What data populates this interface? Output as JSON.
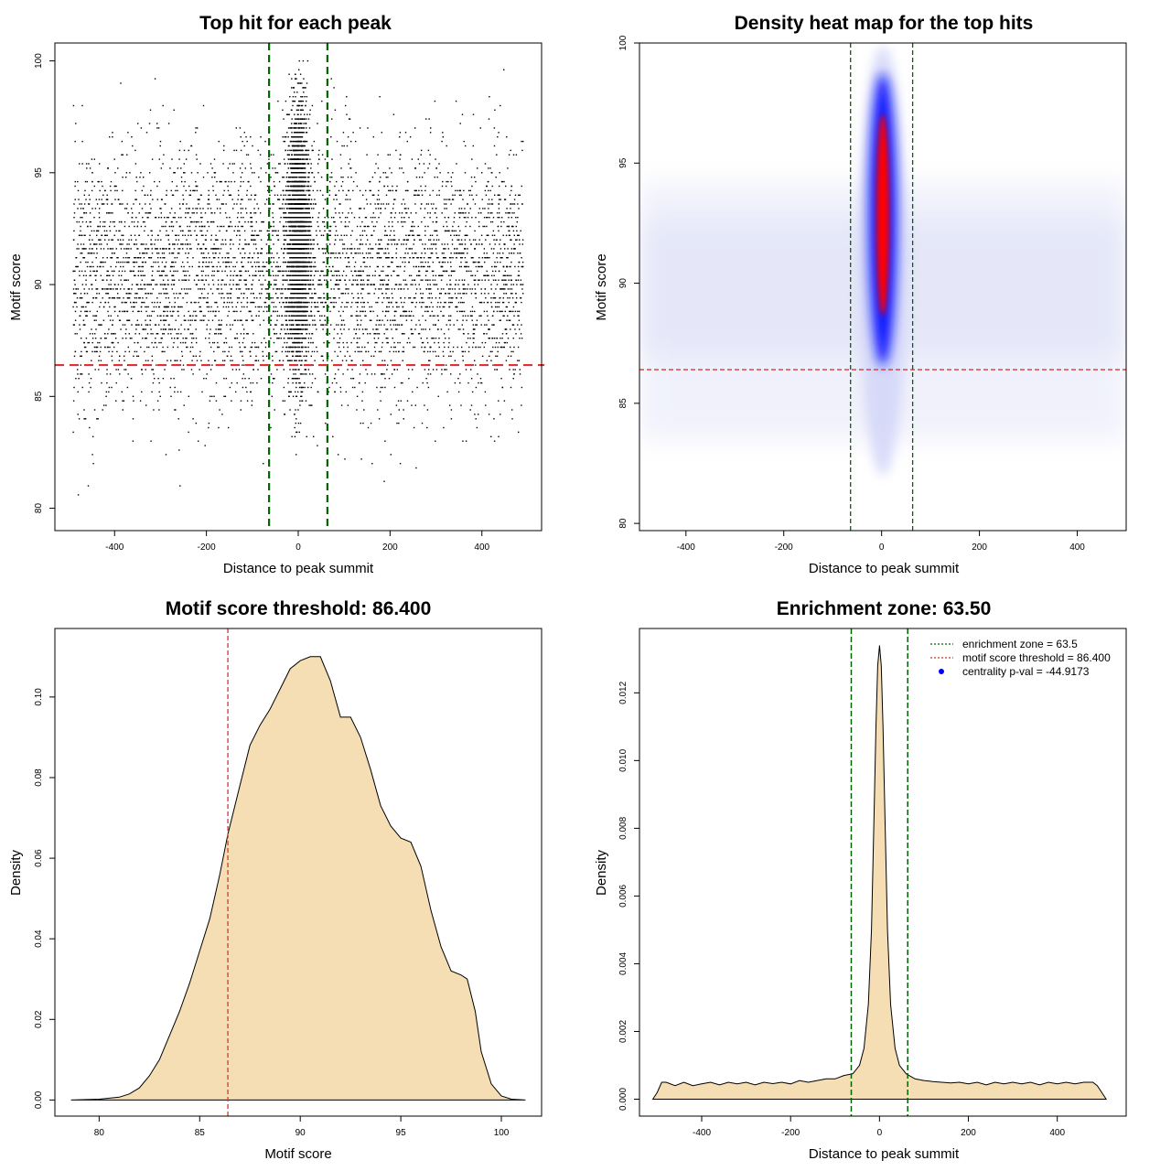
{
  "chart_data": [
    {
      "type": "scatter",
      "title": "Top hit for each peak",
      "xlabel": "Distance to peak summit",
      "ylabel": "Motif score",
      "xlim": [
        -530,
        530
      ],
      "ylim": [
        79,
        100.8
      ],
      "xticks": [
        -400,
        -200,
        0,
        200,
        400
      ],
      "yticks": [
        80,
        85,
        90,
        95,
        100
      ],
      "xtick_labels": [
        "-400",
        "-200",
        "0",
        "200",
        "400"
      ],
      "ytick_labels": [
        "80",
        "85",
        "90",
        "95",
        "100"
      ],
      "vlines": [
        -63.5,
        63.5
      ],
      "hline": 86.4,
      "vline_color": "#006400",
      "hline_color": "#dd3333",
      "point_color": "#000000"
    },
    {
      "type": "heatmap",
      "title": "Density heat map for the top hits",
      "xlabel": "Distance to peak summit",
      "ylabel": "Motif score",
      "xlim": [
        -495,
        500
      ],
      "ylim": [
        79.7,
        100
      ],
      "xticks": [
        -400,
        -200,
        0,
        200,
        400
      ],
      "yticks": [
        80,
        85,
        90,
        95,
        100
      ],
      "xtick_labels": [
        "-400",
        "-200",
        "0",
        "200",
        "400"
      ],
      "ytick_labels": [
        "80",
        "85",
        "90",
        "95",
        "100"
      ],
      "vlines": [
        -63.5,
        63.5
      ],
      "hline": 86.4,
      "vline_color": "#006400",
      "hline_color": "#dd3333",
      "colors": [
        "#ffffff",
        "#0000ff",
        "#ff0000"
      ]
    },
    {
      "type": "area",
      "title": "Motif score threshold: 86.400",
      "xlabel": "Motif score",
      "ylabel": "Density",
      "xlim": [
        77.8,
        102
      ],
      "ylim": [
        -0.004,
        0.117
      ],
      "xticks": [
        80,
        85,
        90,
        95,
        100
      ],
      "yticks": [
        0,
        0.02,
        0.04,
        0.06,
        0.08,
        0.1
      ],
      "xtick_labels": [
        "80",
        "85",
        "90",
        "95",
        "100"
      ],
      "ytick_labels": [
        "0.00",
        "0.02",
        "0.04",
        "0.06",
        "0.08",
        "0.10"
      ],
      "vline": 86.4,
      "vline_color": "#dd3333",
      "fill_color": "#f5deb3",
      "x": [
        78.6,
        80,
        81,
        81.5,
        82,
        82.5,
        83,
        83.5,
        84,
        84.5,
        85,
        85.5,
        86,
        86.4,
        87,
        87.5,
        88,
        88.5,
        89,
        89.5,
        90,
        90.5,
        91,
        91.5,
        92,
        92.5,
        93,
        93.5,
        94,
        94.5,
        95,
        95.5,
        96,
        96.5,
        97,
        97.5,
        98,
        98.3,
        98.7,
        99,
        99.5,
        100,
        100.5,
        101.2
      ],
      "y": [
        0,
        0.0002,
        0.0007,
        0.0015,
        0.003,
        0.006,
        0.01,
        0.016,
        0.022,
        0.029,
        0.037,
        0.045,
        0.056,
        0.066,
        0.078,
        0.088,
        0.093,
        0.097,
        0.102,
        0.107,
        0.109,
        0.11,
        0.11,
        0.104,
        0.095,
        0.095,
        0.09,
        0.082,
        0.073,
        0.068,
        0.065,
        0.064,
        0.058,
        0.047,
        0.038,
        0.032,
        0.031,
        0.03,
        0.022,
        0.012,
        0.004,
        0.001,
        0.0002,
        0
      ]
    },
    {
      "type": "area",
      "title": "Enrichment zone: 63.50",
      "xlabel": "Distance to peak summit",
      "ylabel": "Density",
      "xlim": [
        -540,
        555
      ],
      "ylim": [
        -0.0005,
        0.0139
      ],
      "xticks": [
        -400,
        -200,
        0,
        200,
        400
      ],
      "yticks": [
        0,
        0.002,
        0.004,
        0.006,
        0.008,
        0.01,
        0.012
      ],
      "xtick_labels": [
        "-400",
        "-200",
        "0",
        "200",
        "400"
      ],
      "ytick_labels": [
        "0.000",
        "0.002",
        "0.004",
        "0.006",
        "0.008",
        "0.010",
        "0.012"
      ],
      "vlines": [
        -63.5,
        63.5
      ],
      "vline_color": "#006400",
      "fill_color": "#f5deb3",
      "x": [
        -510,
        -500,
        -490,
        -480,
        -460,
        -440,
        -420,
        -400,
        -380,
        -360,
        -340,
        -320,
        -300,
        -280,
        -260,
        -240,
        -220,
        -200,
        -180,
        -160,
        -140,
        -120,
        -100,
        -80,
        -60,
        -45,
        -35,
        -25,
        -18,
        -12,
        -8,
        -4,
        0,
        4,
        8,
        12,
        18,
        25,
        35,
        45,
        60,
        80,
        100,
        120,
        140,
        160,
        180,
        200,
        220,
        240,
        260,
        280,
        300,
        320,
        340,
        360,
        380,
        400,
        420,
        440,
        460,
        480,
        490,
        500,
        510
      ],
      "y": [
        0,
        0.0002,
        0.0005,
        0.0005,
        0.0004,
        0.0005,
        0.0004,
        0.00045,
        0.0005,
        0.00042,
        0.0005,
        0.00045,
        0.0005,
        0.00042,
        0.0005,
        0.00046,
        0.0005,
        0.00045,
        0.00055,
        0.0005,
        0.00055,
        0.0006,
        0.0006,
        0.0007,
        0.00075,
        0.001,
        0.0015,
        0.0028,
        0.005,
        0.0085,
        0.011,
        0.0128,
        0.0134,
        0.0128,
        0.011,
        0.0085,
        0.005,
        0.0028,
        0.0015,
        0.001,
        0.00075,
        0.0006,
        0.00055,
        0.00052,
        0.0005,
        0.00048,
        0.0005,
        0.00045,
        0.0005,
        0.00042,
        0.0005,
        0.00045,
        0.0005,
        0.00045,
        0.0005,
        0.00042,
        0.0005,
        0.00045,
        0.0005,
        0.00045,
        0.0005,
        0.0005,
        0.0004,
        0.0002,
        0
      ],
      "legend": [
        {
          "label": "enrichment zone = 63.5",
          "style": "dotted",
          "color": "#006400"
        },
        {
          "label": "motif score threshold = 86.400",
          "style": "dotted",
          "color": "#dd3333"
        },
        {
          "label": "centrality p-val = -44.9173",
          "style": "point",
          "color": "#0000ff"
        }
      ]
    }
  ]
}
